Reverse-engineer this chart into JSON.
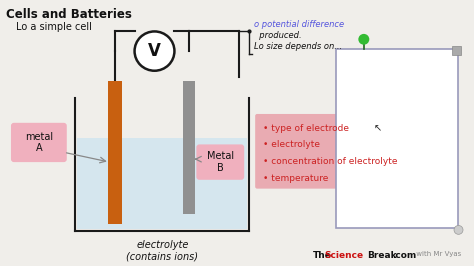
{
  "bg_color": "#f0eeea",
  "title": "Cells and Batteries",
  "subtitle": "Lo a simple cell",
  "annotation1": "o potential difference",
  "annotation2": "  produced.",
  "annotation3": "Lo size depends on...",
  "bullet_items": [
    "• type of electrode",
    "• electrolyte",
    "• concentration of electrolyte",
    "• temperature"
  ],
  "bullet_bg": "#e8a0a8",
  "metal_a_label": "metal\nA",
  "metal_b_label": "Metal\nB",
  "electrolyte_label": "electrolyte\n(contains ions)",
  "voltmeter_label": "V",
  "brand_science": "Science",
  "brand_prefix": "The",
  "brand_break": "Break",
  "brand_domain": ".com",
  "brand_sub": " with Mr Vyas",
  "electrode_a_color": "#c86010",
  "electrode_b_color": "#909090",
  "liquid_color": "#cce4f0",
  "liquid_alpha": 0.75,
  "line_color": "#1a1a1a",
  "annotation_color": "#5555dd",
  "bullet_text_color": "#cc2222",
  "metal_label_bg": "#f0b0be",
  "brand_color_the": "#111111",
  "brand_color_science": "#cc1111",
  "brand_color_break": "#111111",
  "brand_color_com": "#111111",
  "brand_color_sub": "#888888",
  "rect_edge_color": "#9999bb",
  "pin_color": "#33bb33",
  "tab_color": "#aaaaaa",
  "bottom_dot_color": "#cccccc"
}
